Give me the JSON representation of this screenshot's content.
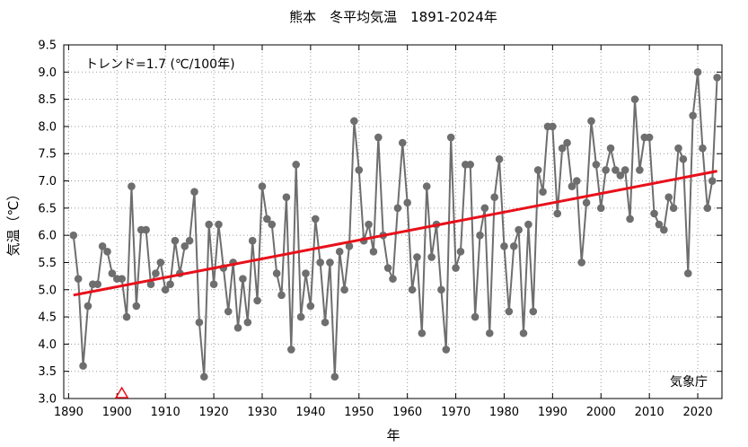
{
  "chart_data": {
    "type": "line",
    "title": "熊本　冬平均気温　1891-2024年",
    "xlabel": "年",
    "ylabel": "気温（℃）",
    "xlim": [
      1889,
      2025
    ],
    "ylim": [
      3.0,
      9.5
    ],
    "x_ticks": [
      1890,
      1900,
      1910,
      1920,
      1930,
      1940,
      1950,
      1960,
      1970,
      1980,
      1990,
      2000,
      2010,
      2020
    ],
    "y_ticks": [
      "3.0",
      "3.5",
      "4.0",
      "4.5",
      "5.0",
      "5.5",
      "6.0",
      "6.5",
      "7.0",
      "7.5",
      "8.0",
      "8.5",
      "9.0",
      "9.5"
    ],
    "grid": true,
    "trend_label": "トレンド=1.7 (℃/100年)",
    "source_label": "気象庁",
    "marker_year": 1901,
    "series": [
      {
        "years": [
          1891,
          1892,
          1893,
          1894,
          1895,
          1896,
          1897,
          1898,
          1899,
          1900,
          1901,
          1902,
          1903,
          1904,
          1905,
          1906,
          1907,
          1908,
          1909,
          1910,
          1911,
          1912,
          1913,
          1914,
          1915,
          1916,
          1917,
          1918,
          1919,
          1920,
          1921,
          1922,
          1923,
          1924,
          1925,
          1926,
          1927,
          1928,
          1929,
          1930,
          1931,
          1932,
          1933,
          1934,
          1935,
          1936,
          1937,
          1938,
          1939,
          1940,
          1941,
          1942,
          1943,
          1944,
          1945,
          1946,
          1947,
          1948,
          1949,
          1950,
          1951,
          1952,
          1953,
          1954,
          1955,
          1956,
          1957,
          1958,
          1959,
          1960,
          1961,
          1962,
          1963,
          1964,
          1965,
          1966,
          1967,
          1968,
          1969,
          1970,
          1971,
          1972,
          1973,
          1974,
          1975,
          1976,
          1977,
          1978,
          1979,
          1980,
          1981,
          1982,
          1983,
          1984,
          1985,
          1986,
          1987,
          1988,
          1989,
          1990,
          1991,
          1992,
          1993,
          1994,
          1995,
          1996,
          1997,
          1998,
          1999,
          2000,
          2001,
          2002,
          2003,
          2004,
          2005,
          2006,
          2007,
          2008,
          2009,
          2010,
          2011,
          2012,
          2013,
          2014,
          2015,
          2016,
          2017,
          2018,
          2019,
          2020,
          2021,
          2022,
          2023,
          2024
        ],
        "values": [
          6.0,
          5.2,
          3.6,
          4.7,
          5.1,
          5.1,
          5.8,
          5.7,
          5.3,
          5.2,
          5.2,
          4.5,
          6.9,
          4.7,
          6.1,
          6.1,
          5.1,
          5.3,
          5.5,
          5.0,
          5.1,
          5.9,
          5.3,
          5.8,
          5.9,
          6.8,
          4.4,
          3.4,
          6.2,
          5.1,
          6.2,
          5.4,
          4.6,
          5.5,
          4.3,
          5.2,
          4.4,
          5.9,
          4.8,
          6.9,
          6.3,
          6.2,
          5.3,
          4.9,
          6.7,
          3.9,
          7.3,
          4.5,
          5.3,
          4.7,
          6.3,
          5.5,
          4.4,
          5.5,
          3.4,
          5.7,
          5.0,
          5.8,
          8.1,
          7.2,
          5.9,
          6.2,
          5.7,
          7.8,
          6.0,
          5.4,
          5.2,
          6.5,
          7.7,
          6.6,
          5.0,
          5.6,
          4.2,
          6.9,
          5.6,
          6.2,
          5.0,
          3.9,
          7.8,
          5.4,
          5.7,
          7.3,
          7.3,
          4.5,
          6.0,
          6.5,
          4.2,
          6.7,
          7.4,
          5.8,
          4.6,
          5.8,
          6.1,
          4.2,
          6.2,
          4.6,
          7.2,
          6.8,
          8.0,
          8.0,
          6.4,
          7.6,
          7.7,
          6.9,
          7.0,
          5.5,
          6.6,
          8.1,
          7.3,
          6.5,
          7.2,
          7.6,
          7.2,
          7.1,
          7.2,
          6.3,
          8.5,
          7.2,
          7.8,
          7.8,
          6.4,
          6.2,
          6.1,
          6.7,
          6.5,
          7.6,
          7.4,
          5.3,
          8.2,
          9.0,
          7.6,
          6.5,
          7.0,
          8.9
        ]
      }
    ],
    "trend": {
      "x": [
        1891,
        2024
      ],
      "y": [
        4.9,
        7.18
      ]
    },
    "colors": {
      "series": "#6e6e6e",
      "trend": "#e8101a",
      "grid": "#9a9a9a",
      "marker": "#e8101a"
    }
  }
}
